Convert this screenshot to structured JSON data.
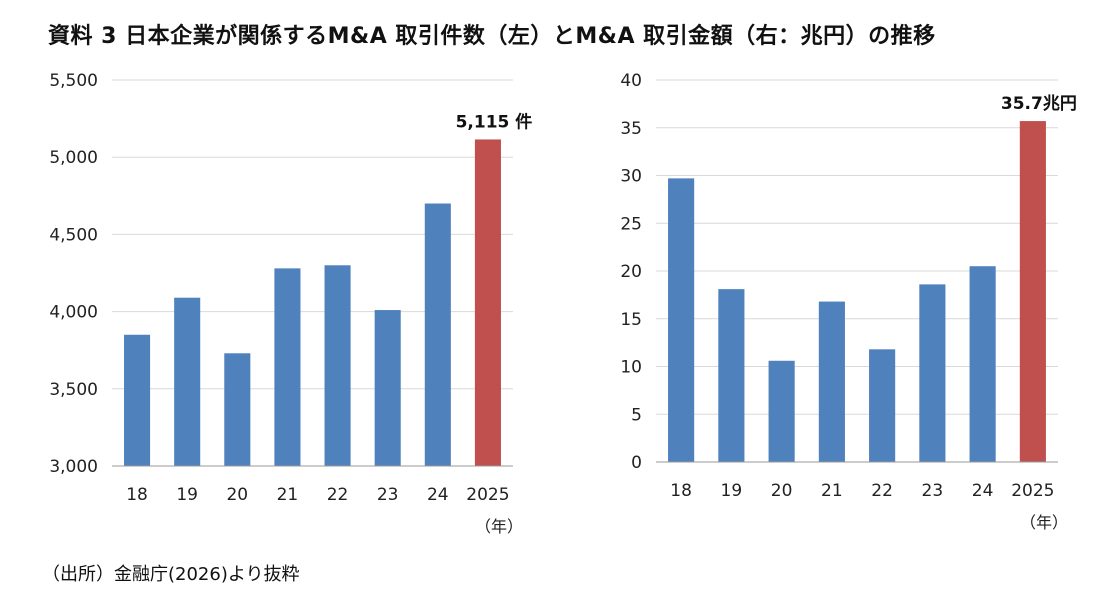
{
  "title": "資料 3  日本企業が関係するM&A 取引件数（左）とM&A 取引金額（右：兆円）の推移",
  "source": "（出所）金融庁(2026)より抜粋",
  "colors": {
    "bar": "#4f81bd",
    "highlight": "#c0504d",
    "grid": "#d9d9d9",
    "axis": "#999999"
  },
  "chart_data": [
    {
      "type": "bar",
      "categories": [
        "18",
        "19",
        "20",
        "21",
        "22",
        "23",
        "24",
        "2025"
      ],
      "values": [
        3850,
        4090,
        3730,
        4280,
        4300,
        4010,
        4700,
        5115
      ],
      "ylim": [
        3000,
        5500
      ],
      "yticks": [
        "3,000",
        "3,500",
        "4,000",
        "4,500",
        "5,000",
        "5,500"
      ],
      "ytick_values": [
        3000,
        3500,
        4000,
        4500,
        5000,
        5500
      ],
      "xlabel": "（年）",
      "annotation": "5,115 件",
      "highlight_index": 7,
      "grid": true
    },
    {
      "type": "bar",
      "categories": [
        "18",
        "19",
        "20",
        "21",
        "22",
        "23",
        "24",
        "2025"
      ],
      "values": [
        29.7,
        18.1,
        10.6,
        16.8,
        11.8,
        18.6,
        20.5,
        35.7
      ],
      "ylim": [
        0,
        40
      ],
      "yticks": [
        "0",
        "5",
        "10",
        "15",
        "20",
        "25",
        "30",
        "35",
        "40"
      ],
      "ytick_values": [
        0,
        5,
        10,
        15,
        20,
        25,
        30,
        35,
        40
      ],
      "xlabel": "（年）",
      "annotation": "35.7兆円",
      "highlight_index": 7,
      "grid": true
    }
  ]
}
